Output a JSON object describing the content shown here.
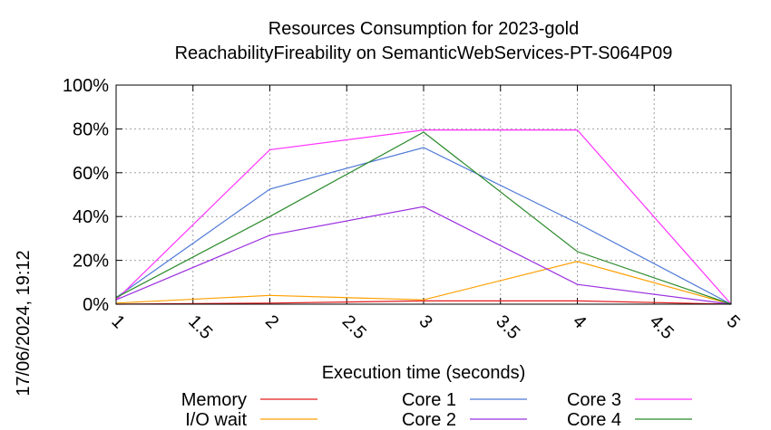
{
  "chart_data": {
    "type": "line",
    "title": "Resources Consumption for 2023-gold",
    "subtitle": "ReachabilityFireability on SemanticWebServices-PT-S064P09",
    "xlabel": "Execution time (seconds)",
    "ylabel": "",
    "xlim": [
      1,
      5
    ],
    "ylim": [
      0,
      100
    ],
    "x_ticks": [
      "1",
      "1.5",
      "2",
      "2.5",
      "3",
      "3.5",
      "4",
      "4.5",
      "5"
    ],
    "y_ticks": [
      "0%",
      "20%",
      "40%",
      "60%",
      "80%",
      "100%"
    ],
    "grid": true,
    "legend_position": "bottom",
    "timestamp": "17/06/2024, 19:12",
    "series": [
      {
        "name": "Memory",
        "color": "#e41a1c",
        "x": [
          1,
          2,
          3,
          4,
          5
        ],
        "values": [
          0,
          0.5,
          1.5,
          1.5,
          0
        ]
      },
      {
        "name": "I/O wait",
        "color": "#ff9f00",
        "x": [
          1,
          2,
          3,
          4,
          5
        ],
        "values": [
          0.5,
          4,
          2,
          19.5,
          0
        ]
      },
      {
        "name": "Core 1",
        "color": "#4f79d6",
        "x": [
          1,
          2,
          3,
          4,
          5
        ],
        "values": [
          3,
          52.5,
          71.5,
          37,
          0
        ]
      },
      {
        "name": "Core 2",
        "color": "#9b30e0",
        "x": [
          1,
          2,
          3,
          4,
          5
        ],
        "values": [
          2,
          31.5,
          44.5,
          9,
          0
        ]
      },
      {
        "name": "Core 3",
        "color": "#ff33ff",
        "x": [
          1,
          2,
          3,
          4,
          5
        ],
        "values": [
          2,
          70.5,
          79.5,
          79.5,
          0
        ]
      },
      {
        "name": "Core 4",
        "color": "#2a8a2a",
        "x": [
          1,
          2,
          3,
          4,
          5
        ],
        "values": [
          3,
          40,
          78.5,
          24,
          0
        ]
      }
    ]
  }
}
